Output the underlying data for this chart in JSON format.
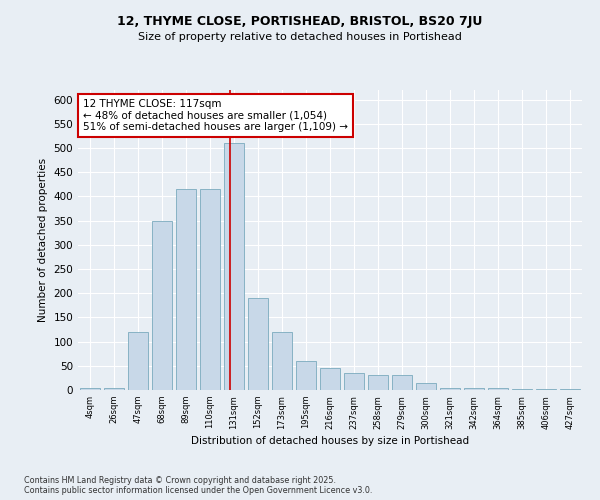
{
  "title1": "12, THYME CLOSE, PORTISHEAD, BRISTOL, BS20 7JU",
  "title2": "Size of property relative to detached houses in Portishead",
  "xlabel": "Distribution of detached houses by size in Portishead",
  "ylabel": "Number of detached properties",
  "categories": [
    "4sqm",
    "26sqm",
    "47sqm",
    "68sqm",
    "89sqm",
    "110sqm",
    "131sqm",
    "152sqm",
    "173sqm",
    "195sqm",
    "216sqm",
    "237sqm",
    "258sqm",
    "279sqm",
    "300sqm",
    "321sqm",
    "342sqm",
    "364sqm",
    "385sqm",
    "406sqm",
    "427sqm"
  ],
  "values": [
    5,
    5,
    120,
    350,
    415,
    415,
    510,
    190,
    120,
    60,
    45,
    35,
    30,
    30,
    15,
    5,
    5,
    5,
    3,
    3,
    3
  ],
  "bar_color": "#c8d8e8",
  "bar_edge_color": "#7aaabe",
  "ylim": [
    0,
    620
  ],
  "yticks": [
    0,
    50,
    100,
    150,
    200,
    250,
    300,
    350,
    400,
    450,
    500,
    550,
    600
  ],
  "vline_x": 5.85,
  "vline_color": "#cc0000",
  "annotation_text": "12 THYME CLOSE: 117sqm\n← 48% of detached houses are smaller (1,054)\n51% of semi-detached houses are larger (1,109) →",
  "annotation_box_color": "#ffffff",
  "annotation_box_edge": "#cc0000",
  "footer": "Contains HM Land Registry data © Crown copyright and database right 2025.\nContains public sector information licensed under the Open Government Licence v3.0.",
  "background_color": "#e8eef4",
  "plot_background": "#e8eef4",
  "title1_fontsize": 9,
  "title2_fontsize": 8
}
